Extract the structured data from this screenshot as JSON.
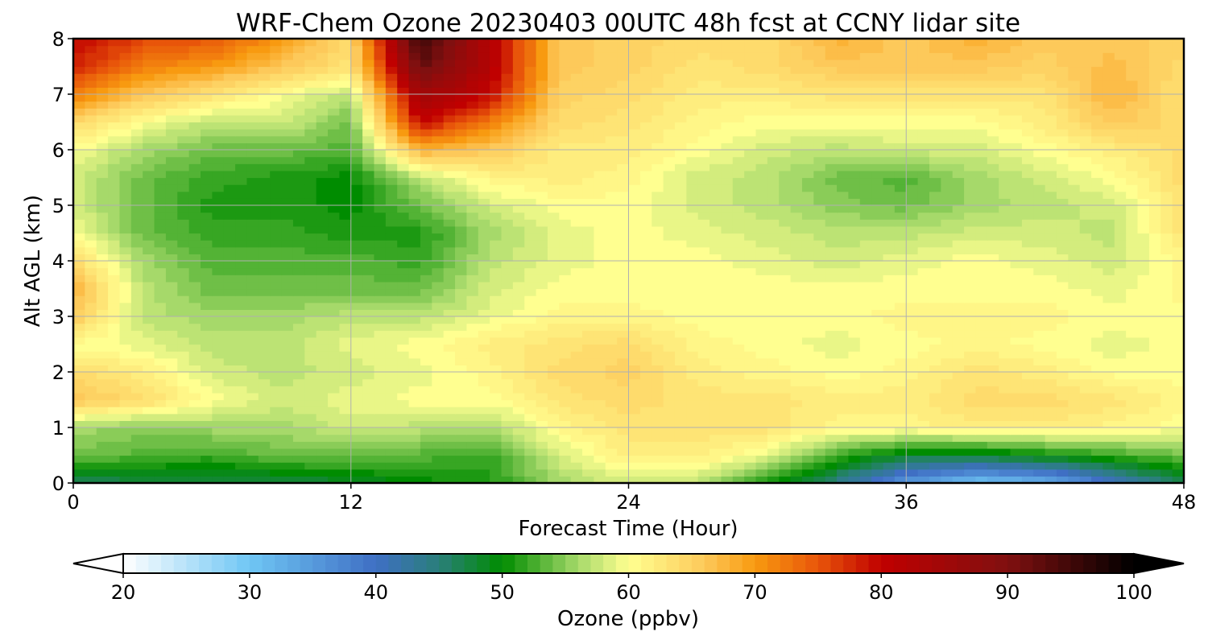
{
  "chart_data": {
    "type": "heatmap",
    "title": "WRF-Chem Ozone  20230403 00UTC 48h fcst at CCNY lidar site",
    "xlabel": "Forecast Time (Hour)",
    "ylabel": "Alt AGL (km)",
    "xlim": [
      0,
      48
    ],
    "ylim": [
      0,
      8
    ],
    "x_ticks": [
      "0",
      "12",
      "24",
      "36",
      "48"
    ],
    "y_ticks": [
      "0",
      "1",
      "2",
      "3",
      "4",
      "5",
      "6",
      "7",
      "8"
    ],
    "grid": true,
    "colorbar": {
      "label": "Ozone  (ppbv)",
      "range": [
        20,
        100
      ],
      "step": 1,
      "extend": "both",
      "ticks": [
        "20",
        "30",
        "40",
        "50",
        "60",
        "70",
        "80",
        "90",
        "100"
      ],
      "colors": {
        "20": "#ffffff",
        "30": "#6fc6f4",
        "40": "#3f6fc4",
        "45": "#2a7f7a",
        "50": "#008c00",
        "56": "#a6d96a",
        "60": "#ffff90",
        "66": "#fdc95a",
        "70": "#f89a10",
        "75": "#e8550a",
        "80": "#c00000",
        "90": "#801010",
        "100": "#000000"
      }
    },
    "x_hours": [
      0,
      3,
      6,
      9,
      12,
      15,
      18,
      21,
      24,
      27,
      30,
      33,
      36,
      39,
      42,
      45,
      48
    ],
    "z_km": [
      0,
      0.5,
      1,
      1.5,
      2,
      2.5,
      3,
      3.5,
      4,
      4.5,
      5,
      5.5,
      6,
      6.5,
      7,
      7.5,
      8
    ],
    "ozone_ppbv": [
      [
        46,
        47,
        47,
        47,
        48,
        50,
        51,
        56,
        58,
        57,
        50,
        44,
        35,
        30,
        32,
        40,
        47
      ],
      [
        54,
        53,
        52,
        54,
        54,
        53,
        52,
        58,
        62,
        62,
        59,
        52,
        48,
        48,
        50,
        52,
        54
      ],
      [
        56,
        55,
        56,
        56,
        58,
        57,
        56,
        61,
        63,
        63,
        63,
        61,
        61,
        62,
        62,
        61,
        60
      ],
      [
        66,
        64,
        60,
        58,
        59,
        60,
        60,
        63,
        64,
        63,
        63,
        62,
        62,
        64,
        64,
        63,
        61
      ],
      [
        64,
        62,
        58,
        57,
        58,
        59,
        61,
        64,
        65,
        62,
        61,
        60,
        61,
        63,
        62,
        60,
        60
      ],
      [
        60,
        59,
        57,
        57,
        59,
        60,
        62,
        63,
        64,
        61,
        60,
        59,
        60,
        61,
        60,
        59,
        60
      ],
      [
        66,
        57,
        56,
        56,
        57,
        57,
        59,
        61,
        61,
        60,
        60,
        60,
        61,
        61,
        61,
        60,
        60
      ],
      [
        68,
        57,
        54,
        54,
        54,
        54,
        58,
        60,
        60,
        60,
        60,
        60,
        60,
        60,
        60,
        59,
        61
      ],
      [
        64,
        56,
        53,
        53,
        53,
        52,
        57,
        59,
        60,
        60,
        59,
        58,
        59,
        60,
        59,
        58,
        61
      ],
      [
        60,
        54,
        52,
        52,
        51,
        51,
        56,
        59,
        60,
        59,
        58,
        57,
        57,
        58,
        58,
        57,
        63
      ],
      [
        58,
        54,
        51,
        51,
        50,
        54,
        58,
        60,
        60,
        58,
        57,
        55,
        54,
        56,
        57,
        58,
        63
      ],
      [
        58,
        54,
        52,
        51,
        50,
        57,
        61,
        62,
        61,
        58,
        57,
        54,
        53,
        56,
        58,
        60,
        64
      ],
      [
        60,
        56,
        54,
        54,
        53,
        68,
        66,
        62,
        62,
        60,
        58,
        57,
        58,
        58,
        60,
        62,
        64
      ],
      [
        64,
        60,
        57,
        58,
        54,
        80,
        72,
        64,
        63,
        61,
        60,
        60,
        60,
        60,
        62,
        66,
        64
      ],
      [
        72,
        66,
        63,
        60,
        57,
        85,
        80,
        65,
        64,
        62,
        62,
        63,
        63,
        63,
        63,
        68,
        63
      ],
      [
        78,
        72,
        70,
        66,
        63,
        92,
        82,
        66,
        65,
        63,
        64,
        66,
        66,
        66,
        65,
        67,
        64
      ],
      [
        80,
        76,
        75,
        70,
        64,
        96,
        82,
        66,
        65,
        64,
        64,
        68,
        66,
        68,
        66,
        66,
        65
      ]
    ]
  }
}
